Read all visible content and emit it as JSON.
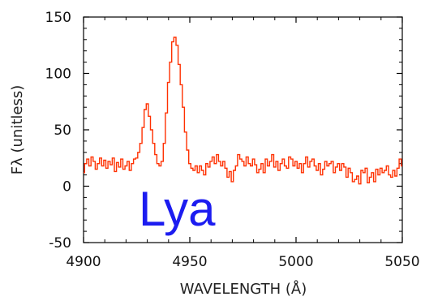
{
  "chart_data": {
    "type": "line",
    "title": "",
    "xlabel": "WAVELENGTH (Å)",
    "ylabel": "Fλ (unitless)",
    "xlim": [
      4900,
      5050
    ],
    "ylim": [
      -50,
      150
    ],
    "xticks": [
      4900,
      4950,
      5000,
      5050
    ],
    "yticks": [
      -50,
      0,
      50,
      100,
      150
    ],
    "grid": false,
    "legend": "none",
    "series_color": "#ff3000",
    "annotation": {
      "text": "Lya",
      "color": "#1c1cf0",
      "x": 4944,
      "y": -6
    },
    "series": [
      {
        "x": [
          4900,
          4901,
          4902,
          4903,
          4904,
          4905,
          4906,
          4907,
          4908,
          4909,
          4910,
          4911,
          4912,
          4913,
          4914,
          4915,
          4916,
          4917,
          4918,
          4919,
          4920,
          4921,
          4922,
          4923,
          4924,
          4925,
          4926,
          4927,
          4928,
          4929,
          4930,
          4931,
          4932,
          4933,
          4934,
          4935,
          4936,
          4937,
          4938,
          4939,
          4940,
          4941,
          4942,
          4943,
          4944,
          4945,
          4946,
          4947,
          4948,
          4949,
          4950,
          4951,
          4952,
          4953,
          4954,
          4955,
          4956,
          4957,
          4958,
          4959,
          4960,
          4961,
          4962,
          4963,
          4964,
          4965,
          4966,
          4967,
          4968,
          4969,
          4970,
          4971,
          4972,
          4973,
          4974,
          4975,
          4976,
          4977,
          4978,
          4979,
          4980,
          4981,
          4982,
          4983,
          4984,
          4985,
          4986,
          4987,
          4988,
          4989,
          4990,
          4991,
          4992,
          4993,
          4994,
          4995,
          4996,
          4997,
          4998,
          4999,
          5000,
          5001,
          5002,
          5003,
          5004,
          5005,
          5006,
          5007,
          5008,
          5009,
          5010,
          5011,
          5012,
          5013,
          5014,
          5015,
          5016,
          5017,
          5018,
          5019,
          5020,
          5021,
          5022,
          5023,
          5024,
          5025,
          5026,
          5027,
          5028,
          5029,
          5030,
          5031,
          5032,
          5033,
          5034,
          5035,
          5036,
          5037,
          5038,
          5039,
          5040,
          5041,
          5042,
          5043,
          5044,
          5045,
          5046,
          5047,
          5048,
          5049,
          5050
        ],
        "y": [
          12,
          20,
          24,
          18,
          26,
          22,
          15,
          20,
          25,
          18,
          23,
          16,
          22,
          19,
          25,
          13,
          21,
          17,
          24,
          15,
          18,
          22,
          14,
          20,
          24,
          25,
          30,
          38,
          52,
          68,
          73,
          62,
          50,
          38,
          28,
          20,
          18,
          22,
          38,
          65,
          92,
          110,
          128,
          132,
          125,
          108,
          90,
          70,
          48,
          32,
          20,
          16,
          14,
          18,
          12,
          18,
          14,
          10,
          20,
          17,
          22,
          26,
          20,
          28,
          22,
          18,
          22,
          16,
          8,
          13,
          4,
          14,
          18,
          28,
          24,
          22,
          18,
          26,
          20,
          18,
          24,
          19,
          12,
          15,
          20,
          12,
          24,
          18,
          22,
          28,
          17,
          22,
          14,
          20,
          24,
          18,
          16,
          26,
          24,
          18,
          22,
          16,
          20,
          12,
          20,
          26,
          17,
          22,
          24,
          18,
          14,
          20,
          10,
          15,
          22,
          18,
          20,
          22,
          12,
          17,
          20,
          14,
          20,
          17,
          8,
          16,
          12,
          4,
          6,
          9,
          2,
          14,
          12,
          16,
          3,
          8,
          12,
          4,
          15,
          10,
          16,
          12,
          14,
          18,
          10,
          8,
          14,
          9,
          16,
          24,
          18
        ]
      }
    ]
  }
}
